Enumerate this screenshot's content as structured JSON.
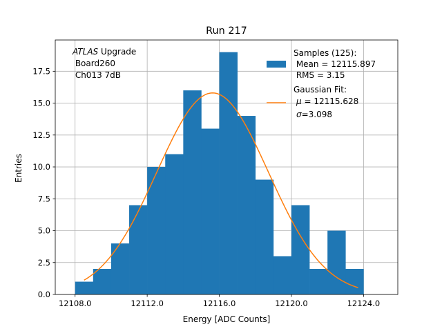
{
  "chart_data": {
    "type": "bar",
    "title": "Run 217",
    "xlabel": "Energy [ADC Counts]",
    "ylabel": "Entries",
    "xlim": [
      12106.9,
      12125.9
    ],
    "ylim": [
      0.0,
      19.95
    ],
    "xticks": [
      12108.0,
      12112.0,
      12116.0,
      12120.0,
      12124.0
    ],
    "xtick_labels": [
      "12108.0",
      "12112.0",
      "12116.0",
      "12120.0",
      "12124.0"
    ],
    "yticks": [
      0.0,
      2.5,
      5.0,
      7.5,
      10.0,
      12.5,
      15.0,
      17.5
    ],
    "ytick_labels": [
      "0.0",
      "2.5",
      "5.0",
      "7.5",
      "10.0",
      "12.5",
      "15.0",
      "17.5"
    ],
    "grid": true,
    "histogram": {
      "name": "Samples (125):",
      "color": "#1f77b4",
      "bin_edges": [
        12108,
        12109,
        12110,
        12111,
        12112,
        12113,
        12114,
        12115,
        12116,
        12117,
        12118,
        12119,
        12120,
        12121,
        12122,
        12123,
        12124
      ],
      "counts": [
        1,
        2,
        4,
        7,
        10,
        11,
        16,
        13,
        19,
        14,
        9,
        3,
        7,
        2,
        5,
        2
      ]
    },
    "fit": {
      "name": "Gaussian Fit:",
      "color": "#ff7f0e",
      "mu": 12115.628,
      "sigma": 3.098,
      "peak": 15.8,
      "x_range": [
        12108.5,
        12123.7
      ]
    },
    "legend": {
      "placement": "top-right",
      "hist_lines": [
        "Samples (125):",
        " Mean = 12115.897",
        " RMS = 3.15"
      ],
      "fit_lines": [
        "Gaussian Fit:",
        " = 12115.628",
        "=3.098"
      ],
      "fit_mu_symbol": "μ",
      "fit_sigma_symbol": "σ"
    },
    "annotation": {
      "italic": "ATLAS",
      "rest": " Upgrade",
      "lines": [
        " Board260",
        " Ch013 7dB"
      ]
    }
  }
}
